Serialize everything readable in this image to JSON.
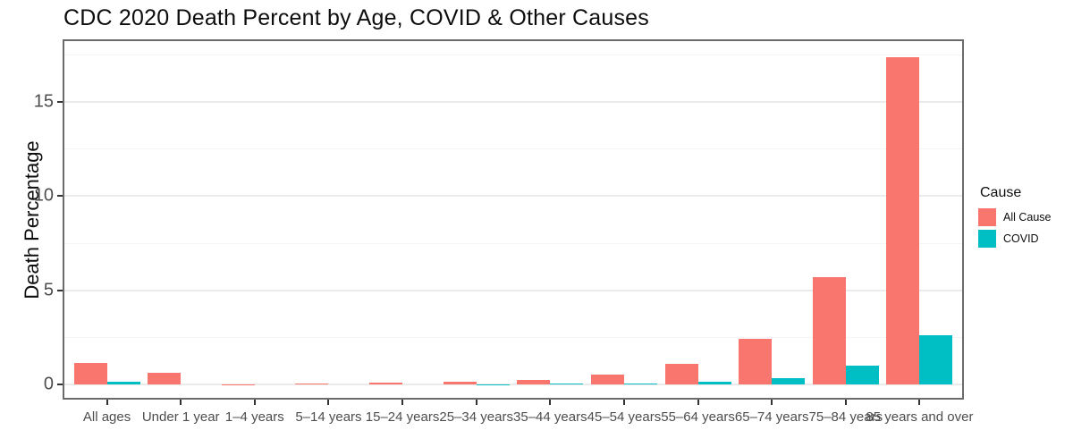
{
  "chart_data": {
    "type": "bar",
    "title": "CDC 2020 Death Percent by Age, COVID & Other Causes",
    "xlabel": "",
    "ylabel": "Death Percentage",
    "legend_title": "Cause",
    "legend_position": "right",
    "grid": true,
    "categories": [
      "All ages",
      "Under 1 year",
      "1–4 years",
      "5–14 years",
      "15–24 years",
      "25–34 years",
      "35–44 years",
      "45–54 years",
      "55–64 years",
      "65–74 years",
      "75–84 years",
      "85 years and over"
    ],
    "series": [
      {
        "name": "All Cause",
        "color": "#F8766D",
        "values": [
          1.15,
          0.6,
          0.02,
          0.03,
          0.1,
          0.16,
          0.23,
          0.52,
          1.1,
          2.4,
          5.7,
          17.35
        ]
      },
      {
        "name": "COVID",
        "color": "#00BFC4",
        "values": [
          0.15,
          0.01,
          0.0,
          0.0,
          0.01,
          0.02,
          0.04,
          0.07,
          0.13,
          0.35,
          1.0,
          2.6
        ]
      }
    ],
    "y_ticks": [
      0,
      5,
      10,
      15
    ],
    "y_minor_ticks": [
      2.5,
      7.5,
      12.5,
      17.5
    ],
    "ylim": [
      -0.8,
      18.3
    ]
  },
  "colors": {
    "all_cause": "#F8766D",
    "covid": "#00BFC4",
    "grid_major": "#ebebeb",
    "panel_border": "#6b6b6b",
    "axis_text": "#4d4d4d"
  }
}
